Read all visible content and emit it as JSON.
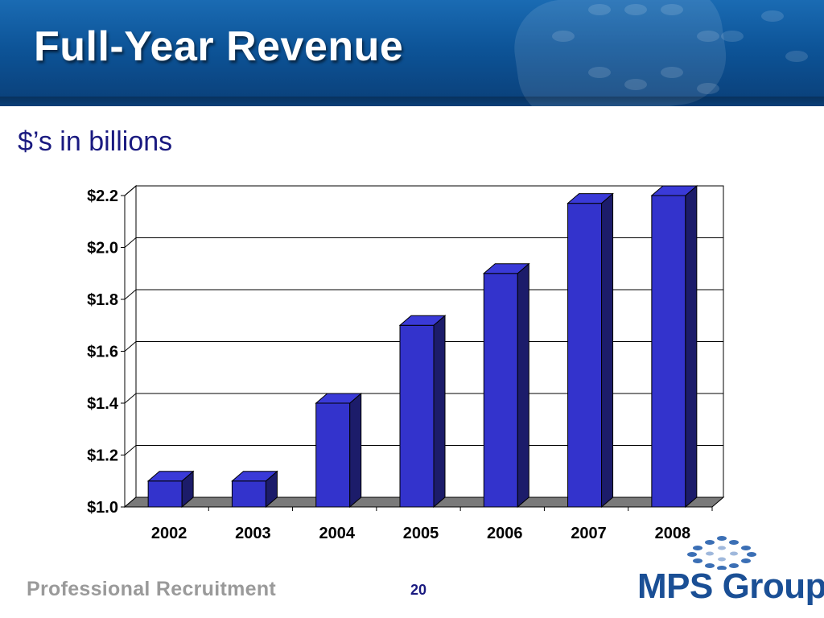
{
  "slide": {
    "title": "Full-Year Revenue",
    "subtitle": "$’s in billions",
    "page_number": "20",
    "footer_text": "Professional Recruitment",
    "logo_text": "MPS Group",
    "logo_mark": "®"
  },
  "colors": {
    "banner": "#0d5498",
    "bar_front": "#3333cc",
    "bar_top": "#3a3ad8",
    "bar_side": "#1c1c6a",
    "floor": "#7a7a7a",
    "text_dark_blue": "#1a1a80"
  },
  "chart_data": {
    "type": "bar",
    "style": "3d",
    "categories": [
      "2002",
      "2003",
      "2004",
      "2005",
      "2006",
      "2007",
      "2008"
    ],
    "values": [
      1.1,
      1.1,
      1.4,
      1.7,
      1.9,
      2.17,
      2.2
    ],
    "ylim": [
      1.0,
      2.2
    ],
    "yticks": [
      "$1.0",
      "$1.2",
      "$1.4",
      "$1.6",
      "$1.8",
      "$2.0",
      "$2.2"
    ],
    "grid": true,
    "legend": "none",
    "title": "",
    "xlabel": "",
    "ylabel": ""
  }
}
